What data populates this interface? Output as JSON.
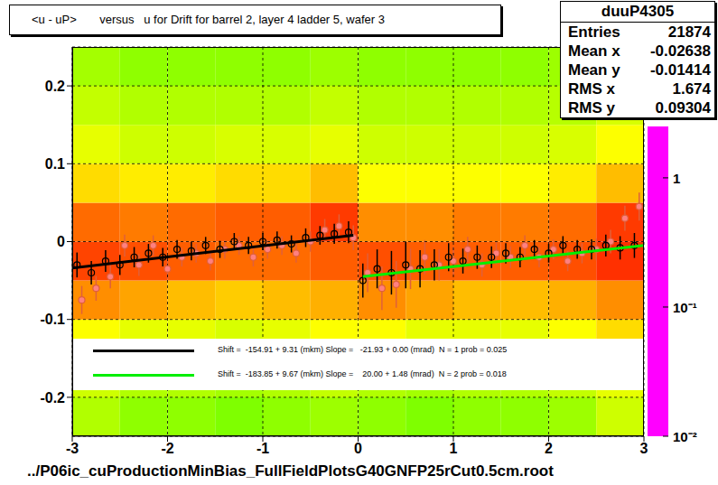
{
  "chart_data": {
    "type": "profile2d",
    "title": "<u - uP>       versus   u for Drift for barrel 2, layer 4 ladder 5, wafer 3",
    "footer": "../P06ic_cuProductionMinBias_FullFieldPlotsG40GNFP25rCut0.5cm.root",
    "xlim": [
      -3,
      3
    ],
    "xticks": [
      -3,
      -2,
      -1,
      0,
      1,
      2,
      3
    ],
    "ylim": [
      -0.25,
      0.25
    ],
    "yticks": [
      -0.2,
      -0.1,
      0,
      0.1,
      0.2
    ],
    "grid": true,
    "heatmap": {
      "log": true,
      "x_bins": [
        -3,
        -2.5,
        -2,
        -1.5,
        -1,
        -0.5,
        0,
        0.5,
        1,
        1.5,
        2,
        2.5,
        3
      ],
      "y_bins": [
        -0.25,
        -0.2,
        -0.15,
        -0.1,
        -0.05,
        0,
        0.05,
        0.1,
        0.15,
        0.2,
        0.25
      ],
      "cells": [
        [
          0.35,
          0.3,
          0.3,
          0.28,
          0.3,
          0.32,
          0.3,
          0.28,
          0.3,
          0.3,
          0.32,
          0.4
        ],
        [
          0.4,
          0.35,
          0.35,
          0.33,
          0.35,
          0.38,
          0.35,
          0.33,
          0.35,
          0.35,
          0.38,
          0.45
        ],
        [
          0.5,
          0.45,
          0.45,
          0.42,
          0.45,
          0.5,
          0.5,
          0.45,
          0.45,
          0.45,
          0.5,
          0.6
        ],
        [
          0.9,
          0.8,
          0.7,
          0.65,
          0.7,
          0.75,
          0.9,
          0.8,
          0.7,
          0.7,
          0.75,
          0.9
        ],
        [
          1.4,
          1.3,
          1.2,
          1.1,
          1.1,
          1.2,
          1.3,
          1.2,
          1.2,
          1.2,
          1.3,
          1.6
        ],
        [
          1.1,
          1.0,
          1.1,
          1.2,
          1.2,
          1.5,
          0.9,
          0.9,
          1.0,
          1.0,
          1.1,
          1.5
        ],
        [
          0.6,
          0.55,
          0.55,
          0.6,
          0.6,
          0.7,
          0.5,
          0.5,
          0.5,
          0.5,
          0.55,
          0.7
        ],
        [
          0.45,
          0.4,
          0.4,
          0.42,
          0.42,
          0.45,
          0.4,
          0.4,
          0.4,
          0.4,
          0.42,
          0.5
        ],
        [
          0.38,
          0.35,
          0.35,
          0.35,
          0.35,
          0.38,
          0.35,
          0.35,
          0.35,
          0.35,
          0.36,
          0.42
        ],
        [
          0.33,
          0.3,
          0.3,
          0.3,
          0.3,
          0.32,
          0.3,
          0.3,
          0.3,
          0.3,
          0.32,
          0.38
        ]
      ],
      "zlim": [
        0.01,
        2.5
      ],
      "zticks": [
        {
          "value": 1,
          "label": "1"
        },
        {
          "value": 0.1,
          "label": "10⁻¹"
        },
        {
          "value": 0.01,
          "label": "10⁻²"
        }
      ]
    },
    "profiles": [
      {
        "color": "#e0603a",
        "marker": "circle",
        "x": [
          -2.9,
          -2.75,
          -2.6,
          -2.45,
          -2.3,
          -2.15,
          -2.0,
          -1.85,
          -1.7,
          -1.55,
          -1.4,
          -1.25,
          -1.1,
          -0.95,
          -0.8,
          -0.65,
          -0.5,
          -0.35,
          -0.2,
          -0.05,
          0.1,
          0.25,
          0.4,
          0.55,
          0.7,
          0.85,
          1.0,
          1.15,
          1.3,
          1.45,
          1.6,
          1.75,
          1.9,
          2.05,
          2.2,
          2.35,
          2.5,
          2.65,
          2.8,
          2.95
        ],
        "values": [
          -0.075,
          -0.06,
          -0.045,
          -0.005,
          -0.03,
          -0.005,
          -0.035,
          -0.02,
          -0.015,
          -0.025,
          -0.01,
          -0.005,
          -0.02,
          -0.01,
          -0.005,
          -0.015,
          0.0,
          0.015,
          0.02,
          0.005,
          -0.04,
          -0.06,
          -0.055,
          -0.035,
          -0.02,
          -0.03,
          -0.025,
          -0.01,
          -0.03,
          -0.015,
          -0.02,
          -0.005,
          -0.02,
          -0.01,
          -0.025,
          -0.015,
          -0.01,
          0.0,
          0.03,
          0.045
        ],
        "errors": [
          0.018,
          0.016,
          0.015,
          0.014,
          0.014,
          0.013,
          0.013,
          0.012,
          0.012,
          0.012,
          0.012,
          0.012,
          0.012,
          0.012,
          0.012,
          0.012,
          0.013,
          0.014,
          0.015,
          0.016,
          0.025,
          0.028,
          0.03,
          0.026,
          0.022,
          0.02,
          0.018,
          0.016,
          0.015,
          0.014,
          0.014,
          0.013,
          0.013,
          0.013,
          0.013,
          0.013,
          0.014,
          0.015,
          0.016,
          0.018
        ]
      },
      {
        "color": "#000000",
        "marker": "open_circle",
        "x": [
          -2.95,
          -2.8,
          -2.65,
          -2.5,
          -2.35,
          -2.2,
          -2.05,
          -1.9,
          -1.75,
          -1.6,
          -1.45,
          -1.3,
          -1.15,
          -1.0,
          -0.85,
          -0.7,
          -0.55,
          -0.4,
          -0.25,
          -0.1,
          0.05,
          0.2,
          0.35,
          0.5,
          0.65,
          0.8,
          0.95,
          1.1,
          1.25,
          1.4,
          1.55,
          1.7,
          1.85,
          2.0,
          2.15,
          2.3,
          2.45,
          2.6,
          2.75,
          2.9
        ],
        "values": [
          -0.03,
          -0.04,
          -0.025,
          -0.03,
          -0.02,
          -0.015,
          -0.02,
          -0.01,
          -0.012,
          -0.005,
          -0.01,
          0.0,
          -0.005,
          0.0,
          0.002,
          -0.003,
          0.005,
          0.008,
          0.01,
          0.012,
          -0.05,
          -0.035,
          -0.04,
          -0.03,
          -0.035,
          -0.03,
          -0.02,
          -0.025,
          -0.02,
          -0.02,
          -0.015,
          -0.02,
          -0.01,
          -0.015,
          -0.005,
          -0.01,
          -0.01,
          -0.005,
          -0.008,
          -0.005
        ],
        "errors": [
          0.016,
          0.015,
          0.014,
          0.013,
          0.013,
          0.012,
          0.012,
          0.012,
          0.012,
          0.011,
          0.011,
          0.011,
          0.011,
          0.011,
          0.011,
          0.011,
          0.012,
          0.012,
          0.013,
          0.014,
          0.022,
          0.025,
          0.028,
          0.03,
          0.024,
          0.02,
          0.018,
          0.016,
          0.015,
          0.014,
          0.013,
          0.013,
          0.012,
          0.012,
          0.012,
          0.012,
          0.013,
          0.014,
          0.015,
          0.016
        ]
      }
    ],
    "fits": [
      {
        "color": "#000000",
        "x": [
          -3,
          -0.05
        ],
        "values": [
          -0.034,
          0.008
        ],
        "label": "Shift =  -154.91 + 9.31 (mkm) Slope =   -21.93 + 0.00 (mrad)  N = 1 prob = 0.025"
      },
      {
        "color": "#00ee00",
        "x": [
          0.05,
          3
        ],
        "values": [
          -0.045,
          -0.005
        ],
        "label": "Shift =  -183.85 + 9.67 (mkm) Slope =    20.00 + 1.48 (mrad)  N = 2 prob = 0.018"
      }
    ],
    "stats": {
      "title": "duuP4305",
      "rows": [
        {
          "label": "Entries",
          "value": 21874
        },
        {
          "label": "Mean x",
          "value": -0.02638
        },
        {
          "label": "Mean y",
          "value": -0.01414
        },
        {
          "label": "RMS x",
          "value": 1.674
        },
        {
          "label": "RMS y",
          "value": 0.09304
        }
      ]
    }
  }
}
